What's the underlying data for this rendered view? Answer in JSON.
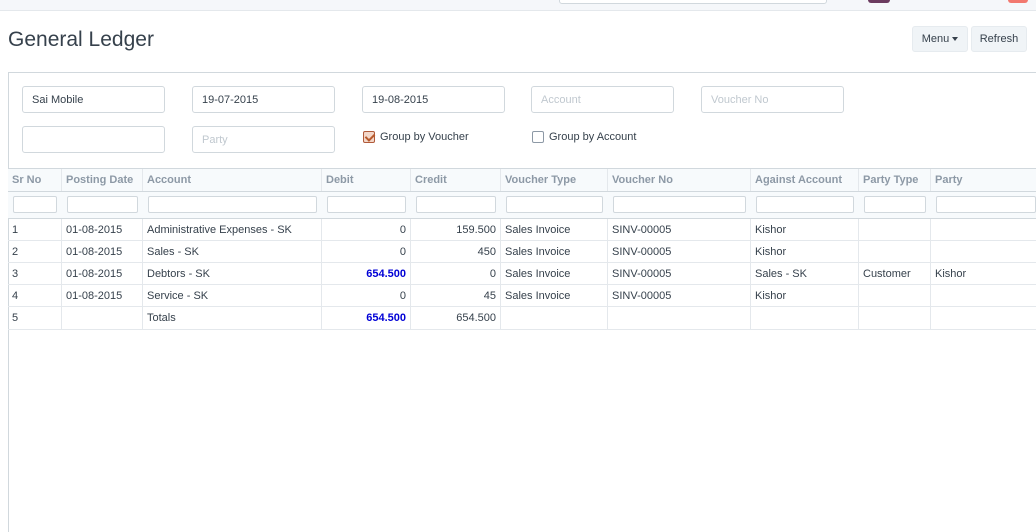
{
  "page": {
    "title": "General Ledger"
  },
  "toolbar": {
    "menu_label": "Menu",
    "refresh_label": "Refresh"
  },
  "filters": {
    "company": "Sai Mobile",
    "from_date": "19-07-2015",
    "to_date": "19-08-2015",
    "account_placeholder": "Account",
    "voucher_no_placeholder": "Voucher No",
    "party_type": "",
    "party_placeholder": "Party",
    "group_by_voucher": {
      "label": "Group by Voucher",
      "checked": true
    },
    "group_by_account": {
      "label": "Group by Account",
      "checked": false
    }
  },
  "table": {
    "columns": [
      "Sr No",
      "Posting Date",
      "Account",
      "Debit",
      "Credit",
      "Voucher Type",
      "Voucher No",
      "Against Account",
      "Party Type",
      "Party"
    ],
    "rows": [
      {
        "sr": "1",
        "date": "01-08-2015",
        "account": "Administrative Expenses - SK",
        "debit": "0",
        "credit": "159.500",
        "vtype": "Sales Invoice",
        "vno": "SINV-00005",
        "against": "Kishor",
        "ptype": "",
        "party": ""
      },
      {
        "sr": "2",
        "date": "01-08-2015",
        "account": "Sales - SK",
        "debit": "0",
        "credit": "450",
        "vtype": "Sales Invoice",
        "vno": "SINV-00005",
        "against": "Kishor",
        "ptype": "",
        "party": ""
      },
      {
        "sr": "3",
        "date": "01-08-2015",
        "account": "Debtors - SK",
        "debit": "654.500",
        "credit": "0",
        "vtype": "Sales Invoice",
        "vno": "SINV-00005",
        "against": "Sales - SK",
        "ptype": "Customer",
        "party": "Kishor"
      },
      {
        "sr": "4",
        "date": "01-08-2015",
        "account": "Service - SK",
        "debit": "0",
        "credit": "45",
        "vtype": "Sales Invoice",
        "vno": "SINV-00005",
        "against": "Kishor",
        "ptype": "",
        "party": ""
      },
      {
        "sr": "5",
        "date": "",
        "account": "Totals",
        "debit": "654.500",
        "credit": "654.500",
        "vtype": "",
        "vno": "",
        "against": "",
        "ptype": "",
        "party": ""
      }
    ]
  },
  "colors": {
    "positive_value": "#0000d6",
    "checkbox_accent": "#b85a2c"
  }
}
